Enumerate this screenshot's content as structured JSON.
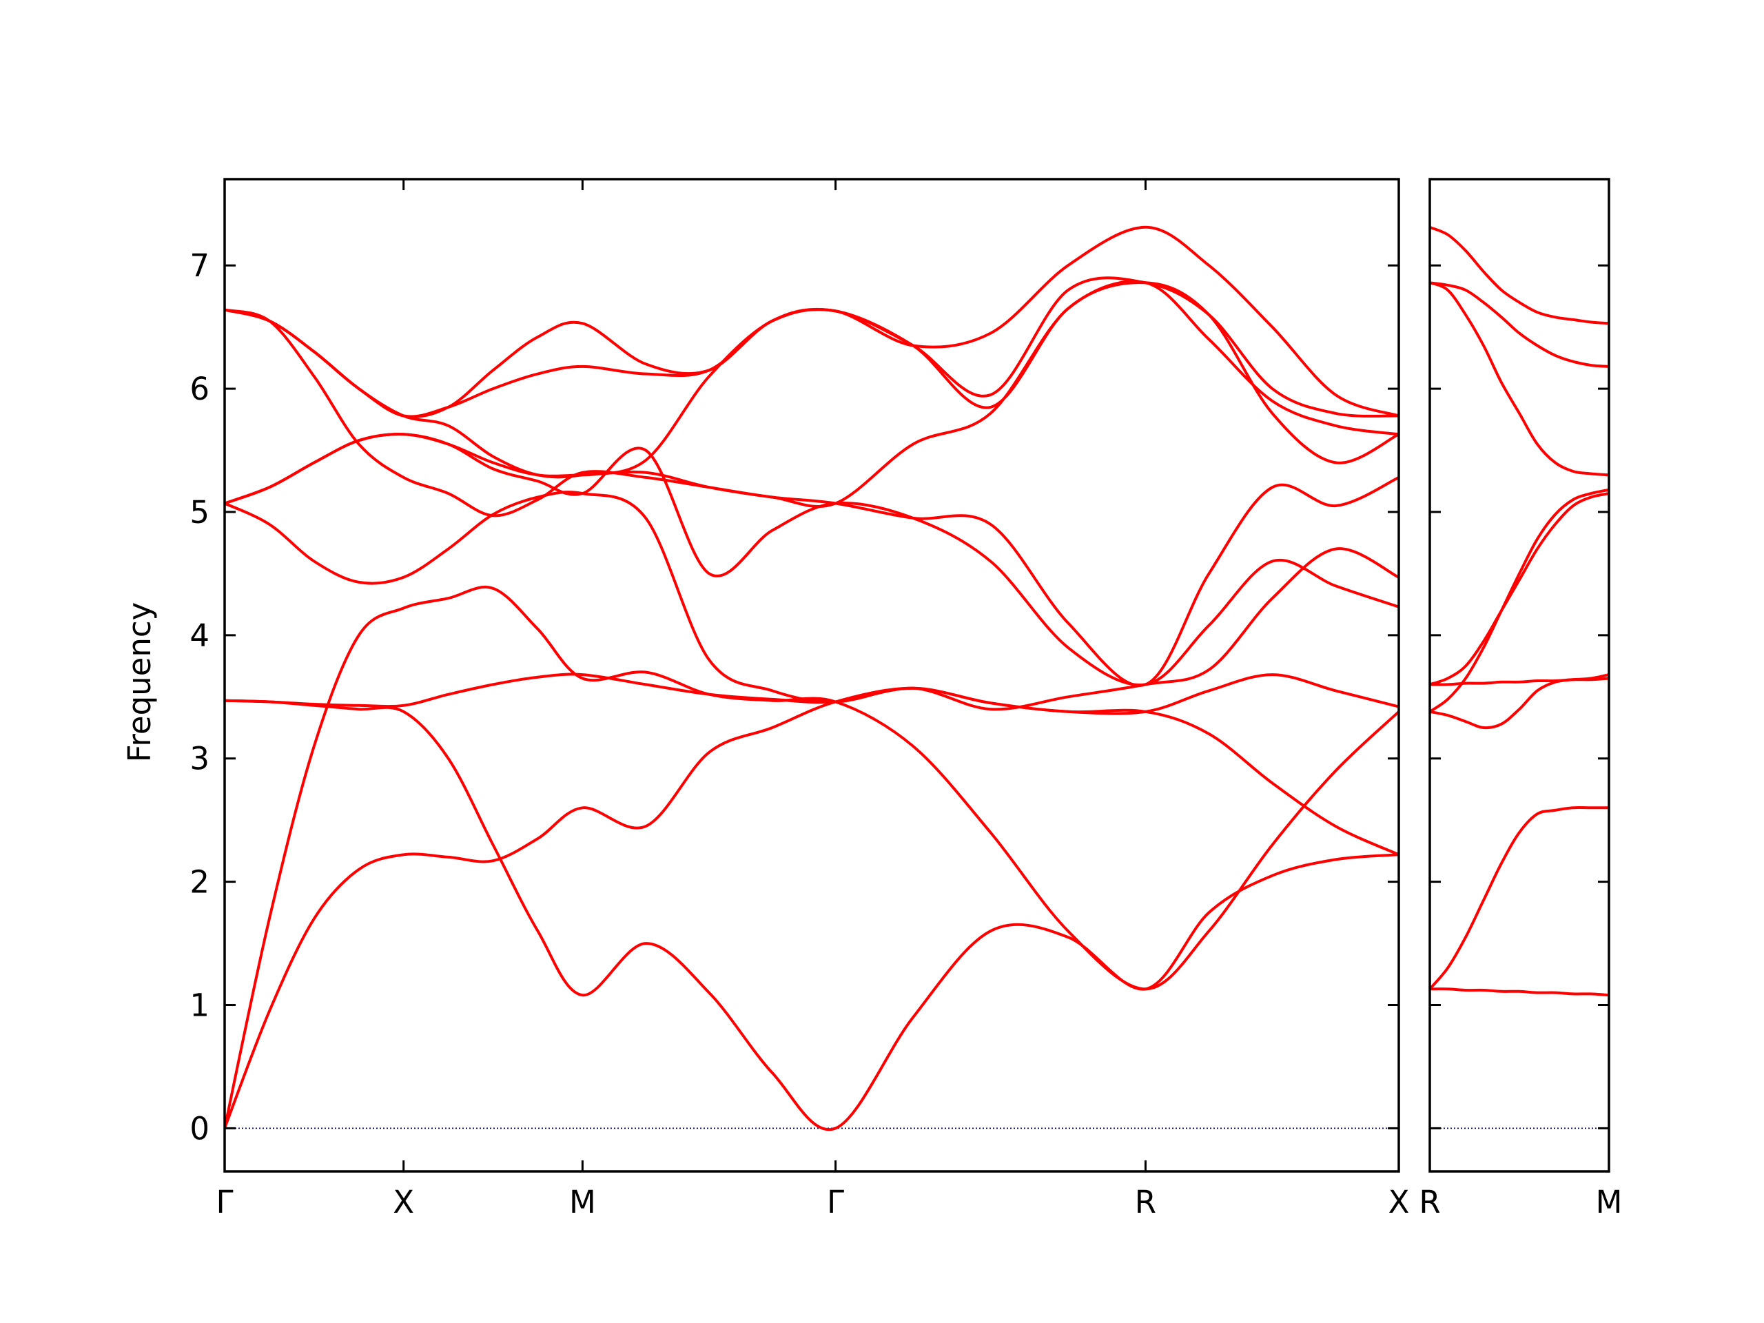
{
  "chart_data": {
    "type": "line",
    "ylabel": "Frequency",
    "ylim": [
      -0.35,
      7.7
    ],
    "y_ticks": [
      "0",
      "1",
      "2",
      "3",
      "4",
      "5",
      "6",
      "7"
    ],
    "grid": false,
    "band_color": "#ff0000",
    "zero_line_color": "#00008b",
    "panels": [
      {
        "x_range": [
          0,
          1
        ],
        "ticks": [
          {
            "x": 0.0,
            "label": "Γ"
          },
          {
            "x": 0.1524,
            "label": "X"
          },
          {
            "x": 0.3048,
            "label": "M"
          },
          {
            "x": 0.5203,
            "label": "Γ"
          },
          {
            "x": 0.7843,
            "label": "R"
          },
          {
            "x": 1.0,
            "label": "X"
          }
        ],
        "band_x": [
          0,
          0.0381,
          0.0762,
          0.1143,
          0.1524,
          0.1905,
          0.2286,
          0.2667,
          0.3048,
          0.3587,
          0.4126,
          0.4664,
          0.5203,
          0.5863,
          0.6523,
          0.7183,
          0.7843,
          0.8383,
          0.8923,
          0.9462,
          1.0
        ],
        "bands": [
          [
            0,
            0.95,
            1.7,
            2.1,
            2.22,
            2.2,
            2.17,
            2.35,
            2.6,
            2.45,
            3.05,
            3.25,
            3.46,
            3.57,
            3.45,
            3.38,
            3.38,
            3.55,
            3.68,
            3.55,
            3.42
          ],
          [
            0,
            1.7,
            3.1,
            4.0,
            4.22,
            4.3,
            4.38,
            4.05,
            3.65,
            3.7,
            3.52,
            3.47,
            3.46,
            3.1,
            2.4,
            1.6,
            1.13,
            1.6,
            2.3,
            2.9,
            3.38
          ],
          [
            3.47,
            3.46,
            3.43,
            3.4,
            3.38,
            3.0,
            2.3,
            1.6,
            1.08,
            1.5,
            1.1,
            0.45,
            0,
            0.9,
            1.6,
            1.55,
            1.13,
            1.75,
            2.05,
            2.18,
            2.22
          ],
          [
            3.47,
            3.46,
            3.44,
            3.43,
            3.43,
            3.52,
            3.6,
            3.66,
            3.68,
            3.6,
            3.52,
            3.48,
            3.46,
            3.57,
            3.45,
            3.38,
            3.38,
            3.2,
            2.8,
            2.45,
            2.22
          ],
          [
            5.07,
            4.9,
            4.6,
            4.43,
            4.47,
            4.7,
            4.98,
            5.12,
            5.15,
            4.95,
            3.8,
            3.55,
            3.46,
            3.57,
            3.4,
            3.5,
            3.6,
            3.72,
            4.3,
            4.7,
            4.47
          ],
          [
            5.07,
            5.2,
            5.4,
            5.58,
            5.63,
            5.55,
            5.35,
            5.25,
            5.15,
            5.5,
            4.5,
            4.85,
            5.07,
            4.95,
            4.6,
            3.9,
            3.6,
            4.08,
            4.6,
            4.4,
            4.23
          ],
          [
            6.64,
            6.55,
            6.1,
            5.55,
            5.28,
            5.15,
            4.97,
            5.1,
            5.32,
            5.28,
            5.2,
            5.12,
            5.07,
            4.95,
            4.9,
            4.1,
            3.6,
            4.5,
            5.2,
            5.05,
            5.28
          ],
          [
            5.07,
            5.2,
            5.4,
            5.58,
            5.63,
            5.55,
            5.4,
            5.3,
            5.3,
            5.32,
            5.2,
            5.12,
            5.07,
            5.55,
            5.8,
            6.65,
            6.86,
            6.6,
            5.8,
            5.4,
            5.63
          ],
          [
            6.64,
            6.55,
            6.3,
            6.0,
            5.78,
            5.7,
            5.45,
            5.3,
            5.3,
            5.42,
            6.1,
            6.55,
            6.63,
            6.35,
            5.85,
            6.65,
            6.86,
            6.4,
            5.9,
            5.7,
            5.63
          ],
          [
            6.64,
            6.55,
            6.3,
            6.0,
            5.78,
            5.85,
            6.0,
            6.12,
            6.18,
            6.12,
            6.15,
            6.55,
            6.63,
            6.35,
            5.95,
            6.8,
            6.86,
            6.6,
            6.0,
            5.8,
            5.78
          ],
          [
            6.64,
            6.55,
            6.3,
            6.0,
            5.78,
            5.85,
            6.15,
            6.42,
            6.53,
            6.2,
            6.15,
            6.55,
            6.63,
            6.35,
            6.45,
            7.0,
            7.31,
            7.0,
            6.5,
            5.95,
            5.78
          ]
        ]
      },
      {
        "x_range": [
          0,
          1
        ],
        "ticks": [
          {
            "x": 0.0,
            "label": "R"
          },
          {
            "x": 1.0,
            "label": "M"
          }
        ],
        "band_x": [
          0,
          0.1,
          0.2,
          0.3,
          0.4,
          0.5,
          0.6,
          0.7,
          0.8,
          0.9,
          1.0
        ],
        "bands": [
          [
            1.13,
            1.13,
            1.12,
            1.12,
            1.11,
            1.11,
            1.1,
            1.1,
            1.09,
            1.09,
            1.08
          ],
          [
            1.13,
            1.3,
            1.55,
            1.85,
            2.15,
            2.4,
            2.55,
            2.58,
            2.6,
            2.6,
            2.6
          ],
          [
            3.38,
            3.35,
            3.3,
            3.25,
            3.28,
            3.4,
            3.55,
            3.62,
            3.64,
            3.65,
            3.68
          ],
          [
            3.6,
            3.6,
            3.61,
            3.61,
            3.62,
            3.62,
            3.63,
            3.63,
            3.64,
            3.64,
            3.65
          ],
          [
            3.6,
            3.65,
            3.75,
            3.95,
            4.2,
            4.45,
            4.7,
            4.9,
            5.05,
            5.12,
            5.15
          ],
          [
            3.38,
            3.48,
            3.65,
            3.9,
            4.2,
            4.5,
            4.78,
            4.98,
            5.1,
            5.15,
            5.18
          ],
          [
            6.86,
            6.8,
            6.6,
            6.35,
            6.05,
            5.8,
            5.55,
            5.4,
            5.33,
            5.31,
            5.3
          ],
          [
            6.86,
            6.84,
            6.8,
            6.7,
            6.58,
            6.45,
            6.35,
            6.27,
            6.22,
            6.19,
            6.18
          ],
          [
            7.31,
            7.25,
            7.12,
            6.95,
            6.8,
            6.7,
            6.62,
            6.58,
            6.56,
            6.54,
            6.53
          ]
        ]
      }
    ]
  }
}
